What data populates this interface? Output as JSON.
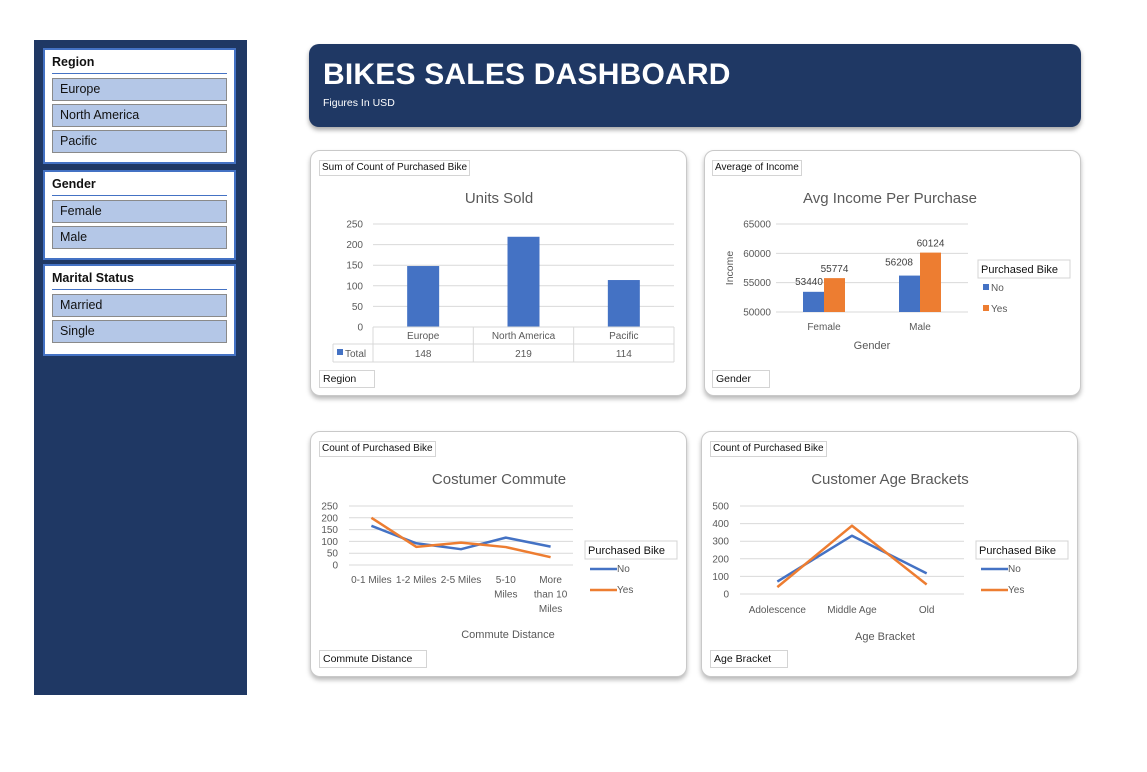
{
  "header": {
    "title": "BIKES SALES DASHBOARD",
    "subtitle": "Figures In USD"
  },
  "slicers": [
    {
      "title": "Region",
      "items": [
        "Europe",
        "North America",
        "Pacific"
      ]
    },
    {
      "title": "Gender",
      "items": [
        "Female",
        "Male"
      ]
    },
    {
      "title": "Marital Status",
      "items": [
        "Married",
        "Single"
      ]
    }
  ],
  "colors": {
    "navy": "#1f3864",
    "blue": "#4472c4",
    "orange": "#ed7d31",
    "slicer_fill": "#b4c7e7"
  },
  "cards": {
    "units": {
      "value_button": "Sum of Count of Purchased Bike",
      "axis_button": "Region"
    },
    "income": {
      "value_button": "Average of Income",
      "axis_button": "Gender"
    },
    "commute": {
      "value_button": "Count of Purchased Bike",
      "axis_button": "Commute Distance"
    },
    "age": {
      "value_button": "Count of Purchased Bike",
      "axis_button": "Age Bracket"
    }
  },
  "chart_data": [
    {
      "id": "units",
      "type": "bar",
      "title": "Units Sold",
      "categories": [
        "Europe",
        "North America",
        "Pacific"
      ],
      "series": [
        {
          "name": "Total",
          "values": [
            148,
            219,
            114
          ]
        }
      ],
      "ylim": [
        0,
        250
      ],
      "yticks": [
        0,
        50,
        100,
        150,
        200,
        250
      ],
      "data_table": true,
      "grid": true
    },
    {
      "id": "income",
      "type": "bar",
      "title": "Avg Income Per  Purchase",
      "xlabel": "Gender",
      "ylabel": "Income",
      "categories": [
        "Female",
        "Male"
      ],
      "series": [
        {
          "name": "No",
          "values": [
            53440,
            56208
          ]
        },
        {
          "name": "Yes",
          "values": [
            55774,
            60124
          ]
        }
      ],
      "ylim": [
        50000,
        65000
      ],
      "yticks": [
        50000,
        55000,
        60000,
        65000
      ],
      "legend_title": "Purchased Bike",
      "legend": "right",
      "data_labels": true,
      "grid": true
    },
    {
      "id": "commute",
      "type": "line",
      "title": "Costumer Commute",
      "xlabel": "Commute Distance",
      "categories": [
        "0-1 Miles",
        "1-2 Miles",
        "2-5 Miles",
        "5-10 Miles",
        "More than 10 Miles"
      ],
      "series": [
        {
          "name": "No",
          "values": [
            166,
            92,
            67,
            116,
            78
          ]
        },
        {
          "name": "Yes",
          "values": [
            200,
            77,
            95,
            76,
            33
          ]
        }
      ],
      "ylim": [
        0,
        250
      ],
      "yticks": [
        0,
        50,
        100,
        150,
        200,
        250
      ],
      "legend_title": "Purchased Bike",
      "legend": "right",
      "grid": true
    },
    {
      "id": "age",
      "type": "line",
      "title": "Customer Age Brackets",
      "xlabel": "Age Bracket",
      "categories": [
        "Adolescence",
        "Middle Age",
        "Old"
      ],
      "series": [
        {
          "name": "No",
          "values": [
            71,
            331,
            117
          ]
        },
        {
          "name": "Yes",
          "values": [
            39,
            388,
            54
          ]
        }
      ],
      "ylim": [
        0,
        500
      ],
      "yticks": [
        0,
        100,
        200,
        300,
        400,
        500
      ],
      "legend_title": "Purchased Bike",
      "legend": "right",
      "grid": true
    }
  ]
}
